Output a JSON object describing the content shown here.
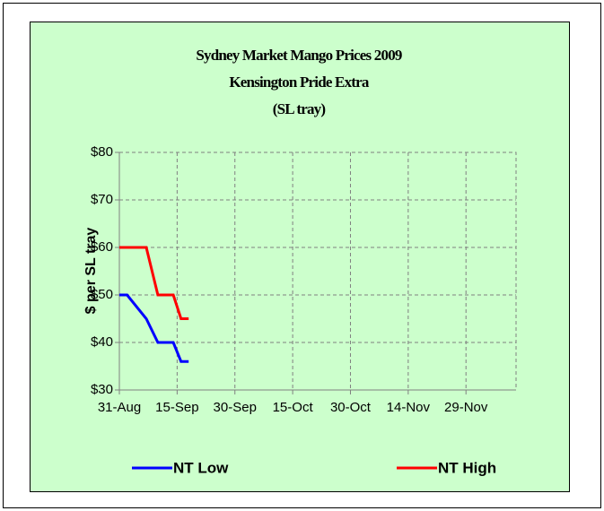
{
  "chart_data": {
    "type": "line",
    "title": [
      "Sydney Market Mango Prices 2009",
      "Kensington Pride Extra",
      "(SL tray)"
    ],
    "y_label": "$ per SL tray",
    "xlim": [
      "31-Aug",
      "12-Dec"
    ],
    "xticks": [
      "31-Aug",
      "15-Sep",
      "30-Sep",
      "15-Oct",
      "30-Oct",
      "14-Nov",
      "29-Nov"
    ],
    "ylim": [
      30,
      80
    ],
    "yticks": [
      {
        "value": 30,
        "label": "$30"
      },
      {
        "value": 40,
        "label": "$40"
      },
      {
        "value": 50,
        "label": "$50"
      },
      {
        "value": 60,
        "label": "$60"
      },
      {
        "value": 70,
        "label": "$70"
      },
      {
        "value": 80,
        "label": "$80"
      }
    ],
    "grid": true,
    "legend": "bottom",
    "series": [
      {
        "name": "NT Low",
        "color": "#0000ff",
        "x": [
          "31-Aug",
          "2-Sep",
          "7-Sep",
          "10-Sep",
          "14-Sep",
          "16-Sep",
          "18-Sep"
        ],
        "values": [
          50,
          50,
          45,
          40,
          40,
          36,
          36
        ]
      },
      {
        "name": "NT High",
        "color": "#ff0000",
        "x": [
          "31-Aug",
          "7-Sep",
          "10-Sep",
          "14-Sep",
          "16-Sep",
          "18-Sep"
        ],
        "values": [
          60,
          60,
          50,
          50,
          45,
          45
        ]
      }
    ]
  }
}
